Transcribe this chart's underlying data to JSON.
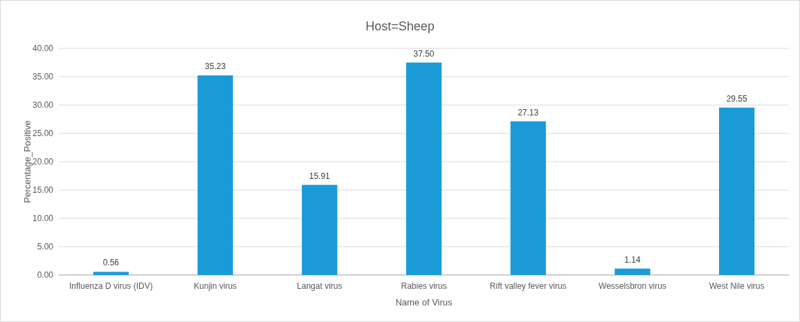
{
  "chart_data": {
    "type": "bar",
    "title": "Host=Sheep",
    "xlabel": "Name of Virus",
    "ylabel": "Percentage_Positive",
    "categories": [
      "Influenza D virus (IDV)",
      "Kunjin virus",
      "Langat virus",
      "Rabies virus",
      "Rift valley fever virus",
      "Wesselsbron virus",
      "West Nile virus"
    ],
    "values": [
      0.56,
      35.23,
      15.91,
      37.5,
      27.13,
      1.14,
      29.55
    ],
    "value_labels": [
      "0.56",
      "35.23",
      "15.91",
      "37.50",
      "27.13",
      "1.14",
      "29.55"
    ],
    "color": "#1a9bd7",
    "ylim": [
      0,
      40
    ],
    "yticks": [
      {
        "value": 0,
        "label": "0.00"
      },
      {
        "value": 5,
        "label": "5.00"
      },
      {
        "value": 10,
        "label": "10.00"
      },
      {
        "value": 15,
        "label": "15.00"
      },
      {
        "value": 20,
        "label": "20.00"
      },
      {
        "value": 25,
        "label": "25.00"
      },
      {
        "value": 30,
        "label": "30.00"
      },
      {
        "value": 35,
        "label": "35.00"
      },
      {
        "value": 40,
        "label": "40.00"
      }
    ],
    "grid": "y"
  }
}
